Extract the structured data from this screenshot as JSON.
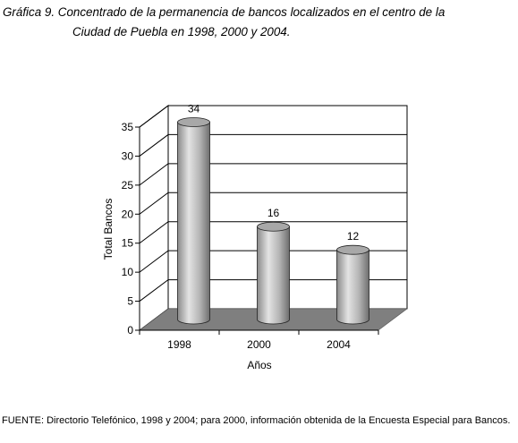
{
  "figure": {
    "title_line1": "Gráfica 9. Concentrado de la permanencia de bancos localizados en el centro de la",
    "title_line2": "Ciudad de Puebla en 1998, 2000 y 2004.",
    "source": "FUENTE: Directorio Telefónico, 1998 y 2004; para 2000, información obtenida de la Encuesta Especial para Bancos."
  },
  "chart_data": {
    "type": "bar",
    "categories": [
      "1998",
      "2000",
      "2004"
    ],
    "values": [
      34,
      16,
      12
    ],
    "data_labels": [
      "34",
      "16",
      "12"
    ],
    "xlabel": "Años",
    "ylabel": "Total Bancos",
    "ylim": [
      0,
      35
    ],
    "yticks": [
      "0",
      "5",
      "10",
      "15",
      "20",
      "25",
      "30",
      "35"
    ],
    "grid": true,
    "legend": "none",
    "bar_color": "#a8a8a8",
    "floor_color": "#7f7f7f"
  }
}
